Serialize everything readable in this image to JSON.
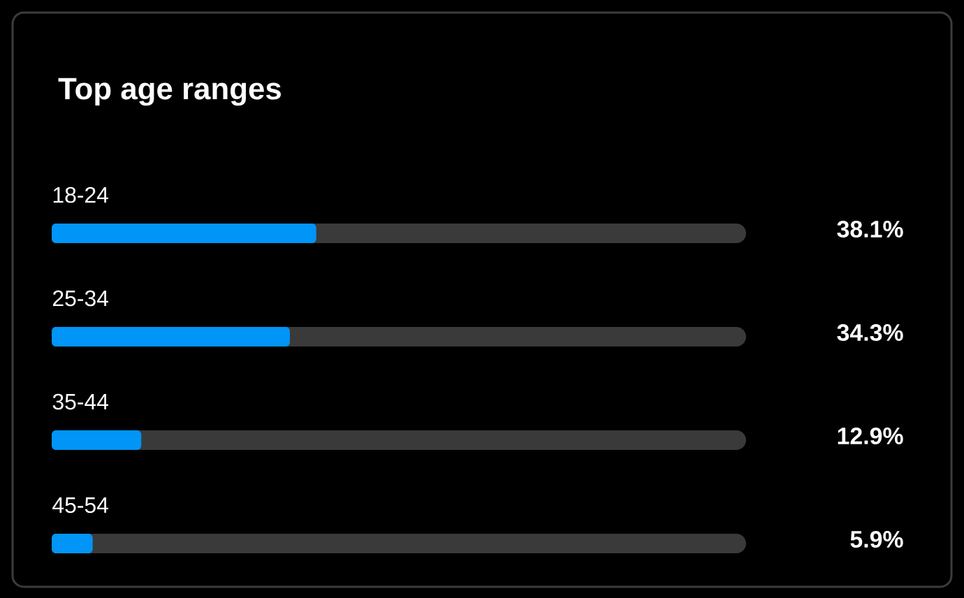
{
  "chart_data": {
    "type": "bar",
    "orientation": "horizontal",
    "title": "Top age ranges",
    "categories": [
      "18-24",
      "25-34",
      "35-44",
      "45-54"
    ],
    "values": [
      38.1,
      34.3,
      12.9,
      5.9
    ],
    "value_labels": [
      "38.1%",
      "34.3%",
      "12.9%",
      "5.9%"
    ],
    "color": "#0095f6",
    "xlim": [
      0,
      100
    ],
    "tick_labels": false
  }
}
